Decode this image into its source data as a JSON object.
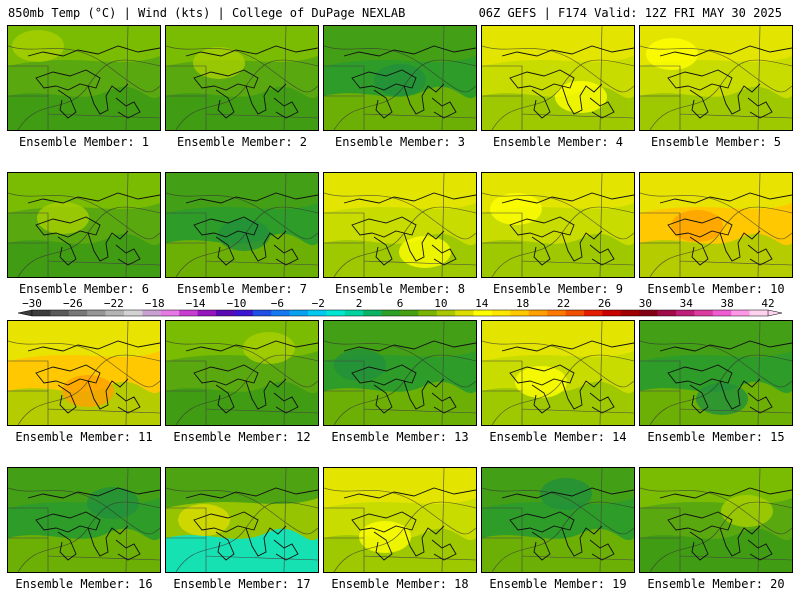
{
  "header": {
    "left": "850mb Temp (°C) | Wind (kts) | College of DuPage NEXLAB",
    "right": "06Z GEFS | F174 Valid: 12Z FRI MAY 30 2025"
  },
  "panels": [
    {
      "label": "Ensemble Member: 1",
      "scheme": "green"
    },
    {
      "label": "Ensemble Member: 2",
      "scheme": "green"
    },
    {
      "label": "Ensemble Member: 3",
      "scheme": "darkgreen"
    },
    {
      "label": "Ensemble Member: 4",
      "scheme": "yellow"
    },
    {
      "label": "Ensemble Member: 5",
      "scheme": "yellow"
    },
    {
      "label": "Ensemble Member: 6",
      "scheme": "green"
    },
    {
      "label": "Ensemble Member: 7",
      "scheme": "darkgreen"
    },
    {
      "label": "Ensemble Member: 8",
      "scheme": "yellow"
    },
    {
      "label": "Ensemble Member: 9",
      "scheme": "yellow"
    },
    {
      "label": "Ensemble Member: 10",
      "scheme": "orange"
    },
    {
      "label": "Ensemble Member: 11",
      "scheme": "orange"
    },
    {
      "label": "Ensemble Member: 12",
      "scheme": "green"
    },
    {
      "label": "Ensemble Member: 13",
      "scheme": "darkgreen"
    },
    {
      "label": "Ensemble Member: 14",
      "scheme": "yellow"
    },
    {
      "label": "Ensemble Member: 15",
      "scheme": "darkgreen"
    },
    {
      "label": "Ensemble Member: 16",
      "scheme": "darkgreen"
    },
    {
      "label": "Ensemble Member: 17",
      "scheme": "cyan"
    },
    {
      "label": "Ensemble Member: 18",
      "scheme": "yellow"
    },
    {
      "label": "Ensemble Member: 19",
      "scheme": "darkgreen"
    },
    {
      "label": "Ensemble Member: 20",
      "scheme": "green"
    }
  ],
  "colorbar": {
    "ticks": [
      "−30",
      "−26",
      "−22",
      "−18",
      "−14",
      "−10",
      "−6",
      "−2",
      "2",
      "6",
      "10",
      "14",
      "18",
      "22",
      "26",
      "30",
      "34",
      "38",
      "42"
    ],
    "colors": [
      "#3c3c3c",
      "#5a5a5a",
      "#787878",
      "#969696",
      "#b4b4b4",
      "#d2d2d2",
      "#c8a0d2",
      "#e678e6",
      "#c83cd2",
      "#9614be",
      "#5a0ab4",
      "#3c14d2",
      "#1e50e6",
      "#1478f0",
      "#0aa0f0",
      "#00c8f0",
      "#00e6d2",
      "#00d2a0",
      "#0ab464",
      "#2da028",
      "#46a014",
      "#78b400",
      "#aac800",
      "#dcdc00",
      "#ffff00",
      "#ffe600",
      "#ffc800",
      "#ffa000",
      "#ff7800",
      "#f05000",
      "#e61e00",
      "#c80000",
      "#a00000",
      "#820014",
      "#a00a46",
      "#be1e78",
      "#dc3ca0",
      "#f05ad2",
      "#ff96e6",
      "#ffd2f0"
    ]
  }
}
